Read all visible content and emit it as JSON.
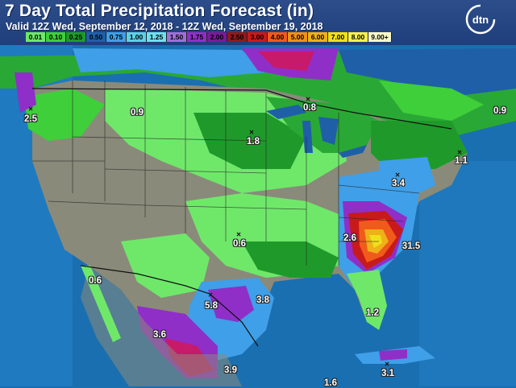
{
  "header": {
    "title": "7 Day Total Precipitation Forecast (in)",
    "valid": "Valid 12Z Wed, September 12, 2018 - 12Z Wed, September 19, 2018",
    "logo_text": "dtn"
  },
  "legend": [
    {
      "label": "0.01",
      "color": "#6fe86a"
    },
    {
      "label": "0.10",
      "color": "#3fcf3a"
    },
    {
      "label": "0.25",
      "color": "#1f9a2a"
    },
    {
      "label": "0.50",
      "color": "#1f5fa8"
    },
    {
      "label": "0.75",
      "color": "#3f9fe8"
    },
    {
      "label": "1.00",
      "color": "#5fcfe8"
    },
    {
      "label": "1.25",
      "color": "#6fe0f0"
    },
    {
      "label": "1.50",
      "color": "#9f6fd8"
    },
    {
      "label": "1.75",
      "color": "#8f2fc8"
    },
    {
      "label": "2.00",
      "color": "#7a1a9a"
    },
    {
      "label": "2.50",
      "color": "#8f1a1a"
    },
    {
      "label": "3.00",
      "color": "#c81a1a"
    },
    {
      "label": "4.00",
      "color": "#f05a1a"
    },
    {
      "label": "5.00",
      "color": "#f0901a"
    },
    {
      "label": "6.00",
      "color": "#f0b01a"
    },
    {
      "label": "7.00",
      "color": "#f0e01a"
    },
    {
      "label": "8.00",
      "color": "#f8f050"
    },
    {
      "label": "9.00+",
      "color": "#f8f8c8"
    }
  ],
  "point_labels": [
    {
      "text": "2.5"
    },
    {
      "text": "0.9"
    },
    {
      "text": "0.8"
    },
    {
      "text": "0.9"
    },
    {
      "text": "1.8"
    },
    {
      "text": "1.1"
    },
    {
      "text": "3.4"
    },
    {
      "text": "2.6"
    },
    {
      "text": "31.5"
    },
    {
      "text": "0.6"
    },
    {
      "text": "0.6"
    },
    {
      "text": "5.8"
    },
    {
      "text": "3.8"
    },
    {
      "text": "1.2"
    },
    {
      "text": "3.6"
    },
    {
      "text": "3.9"
    },
    {
      "text": "3.1"
    },
    {
      "text": "1.6"
    }
  ]
}
